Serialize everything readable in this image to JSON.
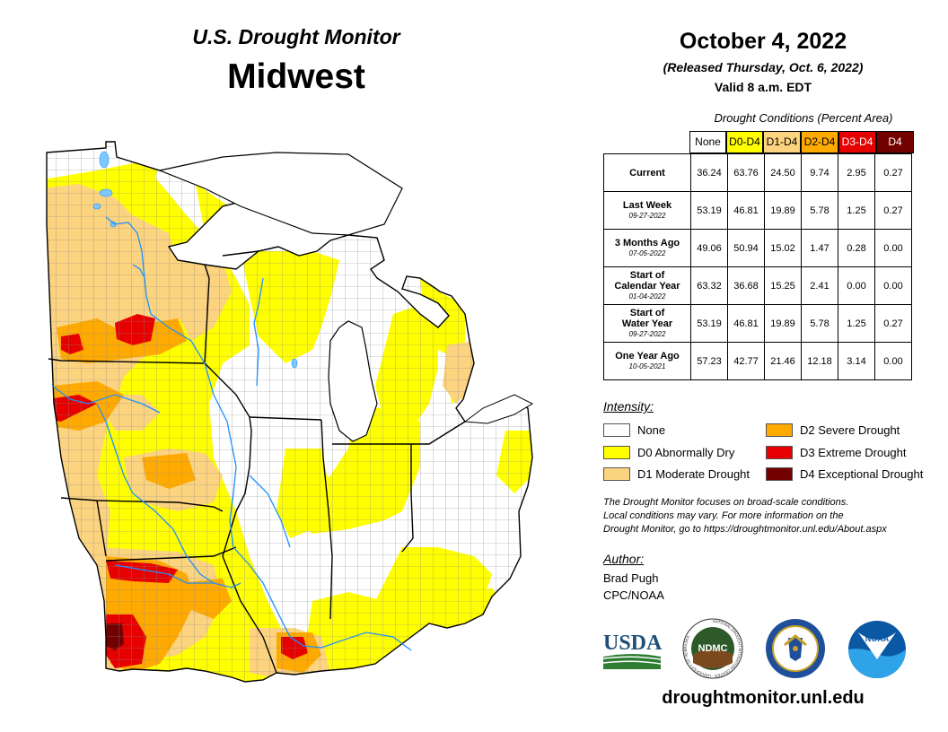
{
  "header": {
    "title": "U.S. Drought Monitor",
    "region": "Midwest",
    "date": "October 4, 2022",
    "released": "(Released Thursday, Oct. 6, 2022)",
    "valid": "Valid 8 a.m. EDT"
  },
  "table": {
    "caption": "Drought Conditions (Percent Area)",
    "columns": [
      {
        "label": "None",
        "color": "#ffffff",
        "text_color": "#000000"
      },
      {
        "label": "D0-D4",
        "color": "#ffff00",
        "text_color": "#000000"
      },
      {
        "label": "D1-D4",
        "color": "#fcd37f",
        "text_color": "#000000"
      },
      {
        "label": "D2-D4",
        "color": "#ffaa00",
        "text_color": "#000000"
      },
      {
        "label": "D3-D4",
        "color": "#e60000",
        "text_color": "#ffffff"
      },
      {
        "label": "D4",
        "color": "#730000",
        "text_color": "#ffffff"
      }
    ],
    "rows": [
      {
        "label": "Current",
        "date": "",
        "values": [
          "36.24",
          "63.76",
          "24.50",
          "9.74",
          "2.95",
          "0.27"
        ]
      },
      {
        "label": "Last Week",
        "date": "09-27-2022",
        "values": [
          "53.19",
          "46.81",
          "19.89",
          "5.78",
          "1.25",
          "0.27"
        ]
      },
      {
        "label": "3 Months Ago",
        "date": "07-05-2022",
        "values": [
          "49.06",
          "50.94",
          "15.02",
          "1.47",
          "0.28",
          "0.00"
        ]
      },
      {
        "label_line1": "Start of",
        "label_line2": "Calendar Year",
        "date": "01-04-2022",
        "values": [
          "63.32",
          "36.68",
          "15.25",
          "2.41",
          "0.00",
          "0.00"
        ]
      },
      {
        "label_line1": "Start of",
        "label_line2": "Water Year",
        "date": "09-27-2022",
        "values": [
          "53.19",
          "46.81",
          "19.89",
          "5.78",
          "1.25",
          "0.27"
        ]
      },
      {
        "label": "One Year Ago",
        "date": "10-05-2021",
        "values": [
          "57.23",
          "42.77",
          "21.46",
          "12.18",
          "3.14",
          "0.00"
        ]
      }
    ]
  },
  "legend": {
    "title": "Intensity:",
    "items": [
      {
        "label": "None",
        "color": "#ffffff"
      },
      {
        "label": "D0 Abnormally Dry",
        "color": "#ffff00"
      },
      {
        "label": "D1 Moderate Drought",
        "color": "#fcd37f"
      },
      {
        "label": "D2 Severe Drought",
        "color": "#ffaa00"
      },
      {
        "label": "D3 Extreme Drought",
        "color": "#e60000"
      },
      {
        "label": "D4 Exceptional Drought",
        "color": "#730000"
      }
    ]
  },
  "note": {
    "line1": "The Drought Monitor focuses on broad-scale conditions.",
    "line2": "Local conditions may vary. For more information on the",
    "line3": "Drought Monitor, go to https://droughtmonitor.unl.edu/About.aspx"
  },
  "author": {
    "label": "Author:",
    "name": "Brad Pugh",
    "org": "CPC/NOAA"
  },
  "logos": {
    "usda": "USDA",
    "ndmc": "NDMC",
    "ndmc_ring": "NATIONAL DROUGHT MITIGATION CENTER · UNIVERSITY OF NEBRASKA",
    "noaa": "NOAA"
  },
  "footer": {
    "site": "droughtmonitor.unl.edu"
  },
  "map": {
    "lake_color": "#7fc7ff",
    "river_color": "#1e90ff",
    "border_color": "#000000",
    "county_color": "#8c8c8c"
  }
}
